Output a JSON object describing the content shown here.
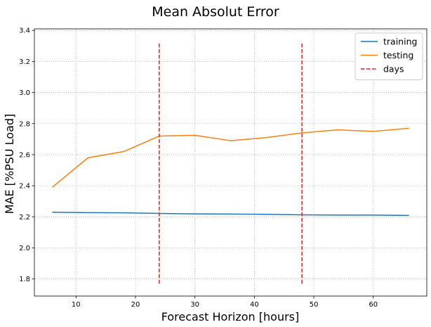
{
  "chart_data": {
    "type": "line",
    "title": "Mean Absolut Error",
    "xlabel": "Forecast Horizon [hours]",
    "ylabel": "MAE [%PSU Load]",
    "xlim": [
      3,
      69
    ],
    "ylim": [
      1.69,
      3.41
    ],
    "xticks": [
      10,
      20,
      30,
      40,
      50,
      60
    ],
    "yticks": [
      1.8,
      2.0,
      2.2,
      2.4,
      2.6,
      2.8,
      3.0,
      3.2,
      3.4
    ],
    "grid": true,
    "legend_position": "top-right",
    "x": [
      6,
      12,
      18,
      24,
      30,
      36,
      42,
      48,
      54,
      60,
      66
    ],
    "series": [
      {
        "name": "training",
        "color": "#1f77b4",
        "style": "solid",
        "values": [
          2.23,
          2.227,
          2.226,
          2.222,
          2.219,
          2.218,
          2.216,
          2.213,
          2.211,
          2.211,
          2.209
        ]
      },
      {
        "name": "testing",
        "color": "#ff7f0e",
        "style": "solid",
        "values": [
          2.39,
          2.58,
          2.62,
          2.72,
          2.725,
          2.69,
          2.71,
          2.74,
          2.76,
          2.75,
          2.77
        ]
      }
    ],
    "vlines": {
      "name": "days",
      "color": "#d62728",
      "style": "dashed",
      "x": [
        24,
        48
      ],
      "ymin": 1.77,
      "ymax": 3.32
    }
  }
}
